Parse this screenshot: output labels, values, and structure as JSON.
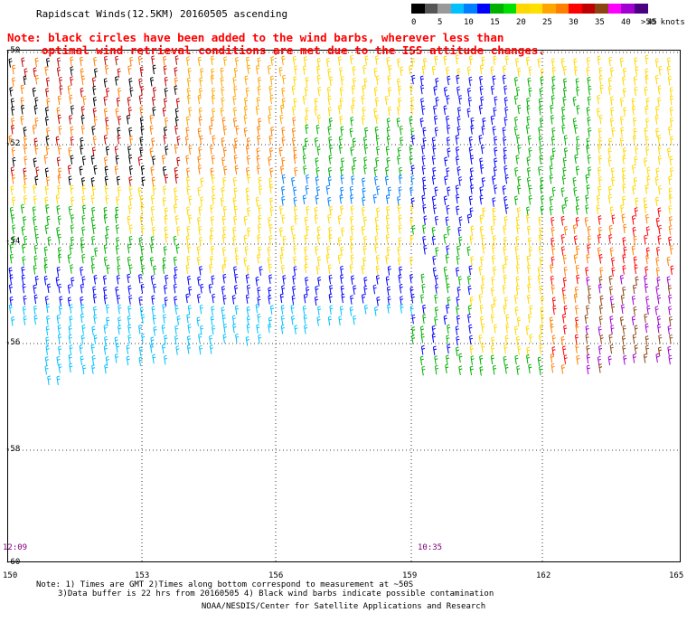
{
  "header": {
    "title": "Rapidscat Winds(12.5KM) 20160505 ascending",
    "note_line1": "Note: black circles have been added to the wind barbs, wherever less than",
    "note_line2": "optimal wind retrieval conditions are met due to the ISS attitude changes."
  },
  "legend": {
    "labels": [
      "0",
      "5",
      "10",
      "15",
      "20",
      "25",
      "30",
      "35",
      "40",
      "45",
      ">50 knots"
    ],
    "colors": [
      "#000000",
      "#555555",
      "#999999",
      "#00c0ff",
      "#0080ff",
      "#0000ff",
      "#00b000",
      "#00e000",
      "#ffd700",
      "#ffe000",
      "#ffa500",
      "#ff7f00",
      "#ff0000",
      "#c00000",
      "#8b4513",
      "#ff00ff",
      "#a000d0",
      "#4b0082"
    ]
  },
  "map": {
    "lat_labels": [
      "-50",
      "-52",
      "-54",
      "-56",
      "-58",
      "-60"
    ],
    "lon_labels": [
      "150",
      "153",
      "156",
      "159",
      "162",
      "165"
    ],
    "time_labels": [
      "12:09",
      "10:35"
    ]
  },
  "footer": {
    "line1": "Note: 1) Times are GMT 2)Times along bottom correspond to measurement at ~50S",
    "line2": "3)Data buffer is 22 hrs from 20160505 4) Black wind barbs indicate possible contamination",
    "credit": "NOAA/NESDIS/Center for Satellite Applications and Research"
  }
}
